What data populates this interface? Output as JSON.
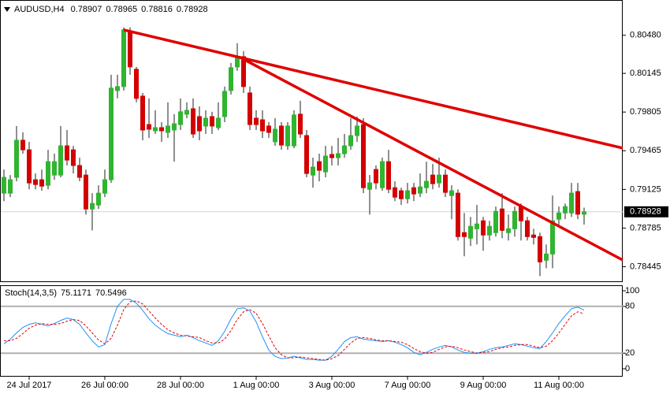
{
  "chart_data": {
    "type": "candlestick",
    "symbol": "AUDUSD,H4",
    "up_color": "#2fb52f",
    "down_color": "#d40000",
    "xlim": [
      -0.625,
      98.125
    ],
    "ylim": [
      0.7831,
      0.8079
    ],
    "yticks": [
      {
        "value": 0.8048,
        "label": "0.80480"
      },
      0.80145,
      0.79805,
      0.79465,
      0.79125,
      0.78785,
      0.78445
    ],
    "xticks": [
      {
        "value": 4,
        "label": "24 Jul 2017"
      },
      {
        "value": 16,
        "label": "26 Jul 00:00"
      },
      {
        "value": 28,
        "label": "28 Jul 00:00"
      },
      {
        "value": 40,
        "label": "1 Aug 00:00"
      },
      {
        "value": 52,
        "label": "3 Aug 00:00"
      },
      {
        "value": 64,
        "label": "7 Aug 00:00"
      },
      {
        "value": 76,
        "label": "9 Aug 00:00"
      },
      {
        "value": 88,
        "label": "11 Aug 00:00"
      }
    ],
    "candles": [
      [
        0.79092,
        0.793,
        0.79022,
        0.79231
      ],
      [
        0.79092,
        0.79251,
        0.79057,
        0.7921
      ],
      [
        0.79231,
        0.79682,
        0.79196,
        0.79557
      ],
      [
        0.79557,
        0.79626,
        0.79439,
        0.79473
      ],
      [
        0.79473,
        0.79543,
        0.79126,
        0.79182
      ],
      [
        0.7921,
        0.79265,
        0.79126,
        0.79168
      ],
      [
        0.7921,
        0.793,
        0.79113,
        0.79154
      ],
      [
        0.79161,
        0.79473,
        0.79126,
        0.79369
      ],
      [
        0.79251,
        0.79439,
        0.7921,
        0.79369
      ],
      [
        0.79251,
        0.79682,
        0.79231,
        0.79508
      ],
      [
        0.79508,
        0.79647,
        0.79335,
        0.79383
      ],
      [
        0.79473,
        0.79508,
        0.79265,
        0.79335
      ],
      [
        0.79335,
        0.79404,
        0.79196,
        0.79231
      ],
      [
        0.79251,
        0.793,
        0.78904,
        0.78953
      ],
      [
        0.78953,
        0.79092,
        0.78765,
        0.79001
      ],
      [
        0.78988,
        0.79161,
        0.78953,
        0.79092
      ],
      [
        0.79092,
        0.793,
        0.79057,
        0.7921
      ],
      [
        0.7921,
        0.80133,
        0.79182,
        0.80015
      ],
      [
        0.79994,
        0.80133,
        0.79925,
        0.80029
      ],
      [
        0.80029,
        0.80549,
        0.79994,
        0.80528
      ],
      [
        0.80514,
        0.80549,
        0.80133,
        0.80202
      ],
      [
        0.80181,
        0.80202,
        0.7989,
        0.79925
      ],
      [
        0.79945,
        0.79973,
        0.79557,
        0.79647
      ],
      [
        0.79695,
        0.79925,
        0.79578,
        0.79654
      ],
      [
        0.7964,
        0.7982,
        0.79612,
        0.79668
      ],
      [
        0.79668,
        0.79716,
        0.79543,
        0.7964
      ],
      [
        0.79626,
        0.7989,
        0.79578,
        0.79682
      ],
      [
        0.79647,
        0.79786,
        0.79369,
        0.79702
      ],
      [
        0.79695,
        0.79925,
        0.79647,
        0.79807
      ],
      [
        0.79786,
        0.7989,
        0.79751,
        0.7982
      ],
      [
        0.79834,
        0.79925,
        0.79578,
        0.79612
      ],
      [
        0.79765,
        0.79855,
        0.79557,
        0.7964
      ],
      [
        0.79682,
        0.7982,
        0.79612,
        0.79751
      ],
      [
        0.79765,
        0.79807,
        0.79612,
        0.79682
      ],
      [
        0.79668,
        0.7989,
        0.79647,
        0.79751
      ],
      [
        0.79765,
        0.80029,
        0.79716,
        0.79987
      ],
      [
        0.79994,
        0.80237,
        0.79959,
        0.80195
      ],
      [
        0.80202,
        0.8041,
        0.80167,
        0.80292
      ],
      [
        0.80292,
        0.80341,
        0.79973,
        0.80029
      ],
      [
        0.79973,
        0.80029,
        0.79647,
        0.79695
      ],
      [
        0.79751,
        0.7982,
        0.79647,
        0.79695
      ],
      [
        0.79737,
        0.7982,
        0.79578,
        0.7964
      ],
      [
        0.79682,
        0.79716,
        0.79578,
        0.79626
      ],
      [
        0.79543,
        0.79751,
        0.79508,
        0.79654
      ],
      [
        0.79682,
        0.79716,
        0.79473,
        0.79515
      ],
      [
        0.79508,
        0.79716,
        0.79473,
        0.79682
      ],
      [
        0.79508,
        0.7982,
        0.79487,
        0.79779
      ],
      [
        0.79786,
        0.79904,
        0.79578,
        0.79612
      ],
      [
        0.79598,
        0.79647,
        0.79231,
        0.79265
      ],
      [
        0.79251,
        0.79404,
        0.7914,
        0.79321
      ],
      [
        0.79369,
        0.79439,
        0.79196,
        0.79293
      ],
      [
        0.79279,
        0.79508,
        0.79231,
        0.79418
      ],
      [
        0.79432,
        0.79508,
        0.79335,
        0.79404
      ],
      [
        0.79404,
        0.79578,
        0.79335,
        0.79439
      ],
      [
        0.79439,
        0.79612,
        0.79404,
        0.79508
      ],
      [
        0.79508,
        0.79751,
        0.79473,
        0.79598
      ],
      [
        0.79598,
        0.79765,
        0.79543,
        0.79682
      ],
      [
        0.79695,
        0.79751,
        0.79092,
        0.7914
      ],
      [
        0.79126,
        0.79251,
        0.78904,
        0.79182
      ],
      [
        0.793,
        0.79335,
        0.79126,
        0.79182
      ],
      [
        0.7914,
        0.79404,
        0.79113,
        0.79369
      ],
      [
        0.79369,
        0.79473,
        0.79092,
        0.79126
      ],
      [
        0.7914,
        0.79196,
        0.79022,
        0.79057
      ],
      [
        0.79113,
        0.7914,
        0.78988,
        0.79043
      ],
      [
        0.79043,
        0.79182,
        0.79001,
        0.79113
      ],
      [
        0.7914,
        0.79182,
        0.79022,
        0.79085
      ],
      [
        0.79092,
        0.79265,
        0.79057,
        0.79147
      ],
      [
        0.7914,
        0.79369,
        0.79092,
        0.79196
      ],
      [
        0.79251,
        0.79349,
        0.79126,
        0.79175
      ],
      [
        0.79182,
        0.79404,
        0.7914,
        0.79251
      ],
      [
        0.79251,
        0.793,
        0.79057,
        0.79099
      ],
      [
        0.79071,
        0.79161,
        0.78863,
        0.79113
      ],
      [
        0.79092,
        0.79126,
        0.78675,
        0.7871
      ],
      [
        0.78745,
        0.78918,
        0.78537,
        0.7871
      ],
      [
        0.78696,
        0.78883,
        0.78627,
        0.788
      ],
      [
        0.78779,
        0.78988,
        0.78641,
        0.78821
      ],
      [
        0.78849,
        0.78883,
        0.78585,
        0.78724
      ],
      [
        0.78724,
        0.78849,
        0.78675,
        0.788
      ],
      [
        0.78745,
        0.78974,
        0.7871,
        0.78932
      ],
      [
        0.78953,
        0.79092,
        0.78696,
        0.78765
      ],
      [
        0.78745,
        0.78904,
        0.78675,
        0.78779
      ],
      [
        0.78779,
        0.78974,
        0.7871,
        0.78932
      ],
      [
        0.78974,
        0.79001,
        0.78675,
        0.78849
      ],
      [
        0.78849,
        0.78883,
        0.78675,
        0.7871
      ],
      [
        0.78724,
        0.78779,
        0.78641,
        0.78703
      ],
      [
        0.7871,
        0.78745,
        0.78363,
        0.78488
      ],
      [
        0.78502,
        0.78641,
        0.78432,
        0.78557
      ],
      [
        0.78557,
        0.79071,
        0.78432,
        0.78849
      ],
      [
        0.78863,
        0.78974,
        0.78814,
        0.78918
      ],
      [
        0.78918,
        0.79001,
        0.78863,
        0.78974
      ],
      [
        0.78918,
        0.79182,
        0.78883,
        0.79092
      ],
      [
        0.79106,
        0.79182,
        0.78863,
        0.78907
      ],
      [
        0.78907,
        0.78965,
        0.78816,
        0.78928
      ]
    ],
    "trendlines": [
      {
        "color": "#e00000",
        "x": [
          19,
          98.125
        ],
        "y": [
          0.80527,
          0.79488
        ]
      },
      {
        "color": "#e00000",
        "x": [
          37.5,
          98.125
        ],
        "y": [
          0.80284,
          0.78504
        ]
      }
    ],
    "indicator": {
      "name": "Stoch(14,3,5)",
      "ylim": [
        0,
        100
      ],
      "yticks": [
        100,
        80,
        20,
        0
      ],
      "levels": [
        80,
        20
      ],
      "series": [
        {
          "color": "#1e90ff",
          "dashed": false,
          "values": [
            32,
            38,
            46,
            53,
            57,
            59,
            57,
            55,
            58,
            62,
            65,
            63,
            57,
            46,
            36,
            28,
            31,
            58,
            80,
            89,
            89,
            84,
            75,
            64,
            56,
            50,
            45,
            43,
            41,
            43,
            40,
            36,
            33,
            30,
            36,
            48,
            64,
            77,
            78,
            74,
            60,
            41,
            24,
            16,
            13,
            14,
            16,
            14,
            12,
            12,
            11,
            11,
            16,
            25,
            35,
            40,
            41,
            38,
            37,
            36,
            35,
            36,
            34,
            31,
            27,
            21,
            18,
            21,
            25,
            28,
            30,
            28,
            24,
            21,
            20,
            20,
            22,
            25,
            27,
            28,
            30,
            32,
            31,
            29,
            27,
            26,
            35,
            46,
            58,
            68,
            77,
            79,
            75.1171
          ]
        },
        {
          "color": "#e00000",
          "dashed": true,
          "values": [
            36,
            36,
            39,
            45,
            52,
            56,
            58,
            57,
            57,
            58,
            61,
            63,
            62,
            55,
            46,
            37,
            32,
            39,
            56,
            76,
            86,
            87,
            83,
            74,
            65,
            57,
            50,
            46,
            43,
            42,
            41,
            40,
            36,
            33,
            33,
            38,
            49,
            63,
            73,
            76,
            71,
            58,
            42,
            27,
            18,
            14,
            14,
            15,
            14,
            13,
            12,
            11,
            13,
            17,
            25,
            33,
            39,
            40,
            39,
            37,
            36,
            36,
            35,
            34,
            31,
            26,
            22,
            20,
            21,
            25,
            28,
            29,
            27,
            24,
            22,
            20,
            21,
            22,
            25,
            27,
            28,
            30,
            31,
            31,
            29,
            27,
            29,
            36,
            46,
            57,
            68,
            73,
            70.5496
          ]
        }
      ]
    }
  }
}
